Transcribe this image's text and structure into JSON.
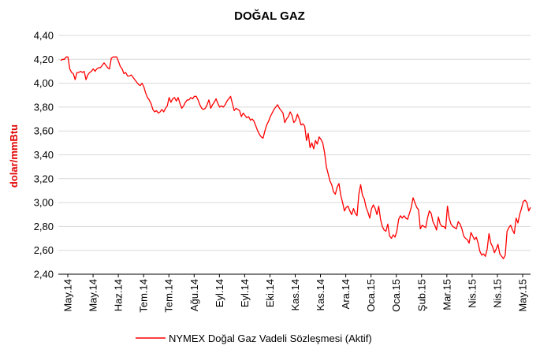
{
  "chart_data": {
    "type": "line",
    "title": "DOĞAL GAZ",
    "ylabel": "dolar/mmBtu",
    "xlabel": "",
    "ylim": [
      2.4,
      4.4
    ],
    "yticks": [
      "2,40",
      "2,60",
      "2,80",
      "3,00",
      "3,20",
      "3,40",
      "3,60",
      "3,80",
      "4,00",
      "4,20",
      "4,40"
    ],
    "grid": true,
    "legend_position": "bottom",
    "line_color": "#ff0000",
    "xticks": [
      "May.14",
      "May.14",
      "Haz.14",
      "Tem.14",
      "Tem.14",
      "Ağu.14",
      "Eyl.14",
      "Eyl.14",
      "Eki.14",
      "Kas.14",
      "Kas.14",
      "Ara.14",
      "Oca.15",
      "Oca.15",
      "Şub.15",
      "Mar.15",
      "Nis.15",
      "Nis.15",
      "May.15"
    ],
    "series": [
      {
        "name": "NYMEX Doğal Gaz Vadeli Sözleşmesi (Aktif)",
        "values": [
          4.19,
          4.2,
          4.2,
          4.22,
          4.22,
          4.12,
          4.09,
          4.08,
          4.03,
          4.09,
          4.09,
          4.1,
          4.09,
          4.1,
          4.03,
          4.07,
          4.09,
          4.1,
          4.12,
          4.1,
          4.12,
          4.13,
          4.13,
          4.15,
          4.17,
          4.15,
          4.13,
          4.12,
          4.21,
          4.22,
          4.22,
          4.22,
          4.18,
          4.14,
          4.12,
          4.08,
          4.09,
          4.06,
          4.06,
          4.07,
          4.05,
          4.03,
          4.01,
          3.99,
          3.98,
          4.0,
          3.97,
          3.92,
          3.88,
          3.86,
          3.83,
          3.78,
          3.76,
          3.77,
          3.75,
          3.76,
          3.78,
          3.76,
          3.79,
          3.81,
          3.88,
          3.84,
          3.87,
          3.88,
          3.85,
          3.88,
          3.83,
          3.79,
          3.81,
          3.84,
          3.86,
          3.86,
          3.88,
          3.87,
          3.89,
          3.89,
          3.86,
          3.82,
          3.79,
          3.78,
          3.79,
          3.82,
          3.86,
          3.79,
          3.82,
          3.84,
          3.87,
          3.83,
          3.8,
          3.81,
          3.8,
          3.82,
          3.85,
          3.87,
          3.89,
          3.83,
          3.77,
          3.79,
          3.78,
          3.77,
          3.72,
          3.75,
          3.73,
          3.71,
          3.72,
          3.69,
          3.7,
          3.68,
          3.64,
          3.6,
          3.57,
          3.55,
          3.54,
          3.6,
          3.65,
          3.68,
          3.72,
          3.75,
          3.78,
          3.8,
          3.82,
          3.79,
          3.77,
          3.75,
          3.67,
          3.7,
          3.72,
          3.76,
          3.73,
          3.67,
          3.69,
          3.74,
          3.7,
          3.65,
          3.66,
          3.64,
          3.52,
          3.58,
          3.46,
          3.5,
          3.45,
          3.52,
          3.49,
          3.55,
          3.53,
          3.5,
          3.42,
          3.3,
          3.24,
          3.18,
          3.15,
          3.09,
          3.07,
          3.13,
          3.16,
          3.06,
          3.0,
          2.93,
          2.96,
          2.97,
          2.93,
          2.9,
          2.95,
          2.91,
          2.89,
          3.07,
          3.15,
          3.06,
          3.03,
          2.96,
          2.92,
          2.87,
          2.95,
          2.98,
          2.95,
          2.9,
          2.97,
          2.86,
          2.8,
          2.77,
          2.76,
          2.82,
          2.72,
          2.7,
          2.73,
          2.71,
          2.76,
          2.86,
          2.89,
          2.87,
          2.89,
          2.87,
          2.86,
          2.91,
          2.96,
          3.04,
          3.0,
          2.96,
          2.94,
          2.78,
          2.81,
          2.8,
          2.79,
          2.87,
          2.93,
          2.91,
          2.84,
          2.81,
          2.77,
          2.88,
          2.82,
          2.8,
          2.8,
          2.78,
          2.97,
          2.87,
          2.82,
          2.8,
          2.79,
          2.78,
          2.84,
          2.82,
          2.78,
          2.72,
          2.7,
          2.69,
          2.66,
          2.75,
          2.72,
          2.69,
          2.71,
          2.66,
          2.59,
          2.56,
          2.57,
          2.55,
          2.61,
          2.74,
          2.66,
          2.63,
          2.58,
          2.61,
          2.65,
          2.57,
          2.55,
          2.53,
          2.56,
          2.76,
          2.79,
          2.81,
          2.77,
          2.74,
          2.87,
          2.83,
          2.9,
          2.95,
          3.01,
          3.02,
          3.0,
          2.93,
          2.96
        ]
      }
    ]
  }
}
